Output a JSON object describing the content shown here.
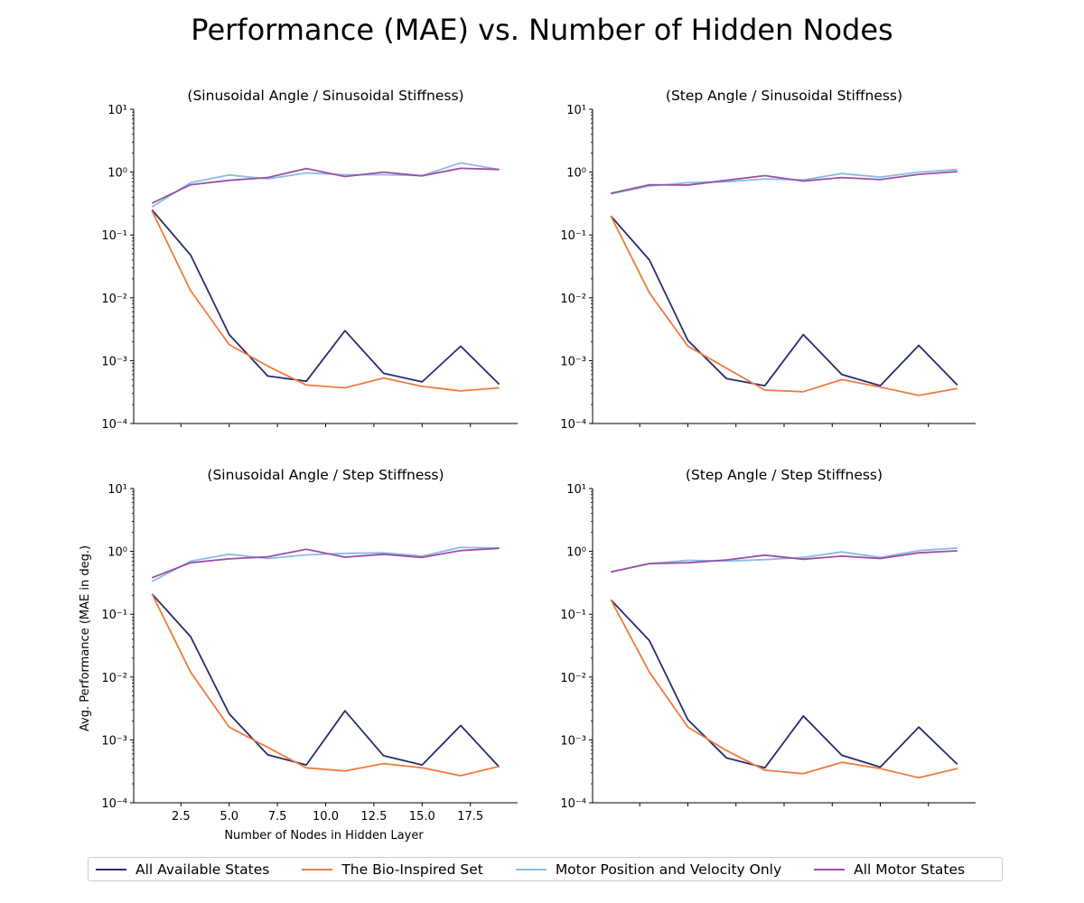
{
  "title": "Performance (MAE) vs. Number of Hidden Nodes",
  "legend": [
    {
      "name": "All Available States",
      "color": "#262e6a"
    },
    {
      "name": "The Bio-Inspired Set",
      "color": "#f07b3f"
    },
    {
      "name": "Motor Position and Velocity Only",
      "color": "#8bbce0"
    },
    {
      "name": "All Motor States",
      "color": "#9a4ea6"
    }
  ],
  "chart_data": [
    {
      "type": "line",
      "title": "(Sinusoidal Angle / Sinusoidal Stiffness)",
      "xlabel": "",
      "ylabel": "",
      "yscale": "log",
      "ylim": [
        0.0001,
        10
      ],
      "yticks": [
        "10⁻⁴",
        "10⁻³",
        "10⁻²",
        "10⁻¹",
        "10⁰",
        "10¹"
      ],
      "xticks": [],
      "x": [
        1,
        3,
        5,
        7,
        9,
        11,
        13,
        15,
        17,
        19
      ],
      "series": [
        {
          "name": "All Available States",
          "values": [
            0.25,
            0.048,
            0.0026,
            0.00057,
            0.00047,
            0.003,
            0.00063,
            0.00046,
            0.0017,
            0.00042
          ]
        },
        {
          "name": "The Bio-Inspired Set",
          "values": [
            0.24,
            0.013,
            0.0018,
            0.00082,
            0.00041,
            0.00037,
            0.00053,
            0.00039,
            0.00033,
            0.00037
          ]
        },
        {
          "name": "Motor Position and Velocity Only",
          "values": [
            0.28,
            0.68,
            0.9,
            0.78,
            0.97,
            0.91,
            0.91,
            0.88,
            1.4,
            1.1
          ]
        },
        {
          "name": "All Motor States",
          "values": [
            0.32,
            0.63,
            0.74,
            0.82,
            1.14,
            0.85,
            1.0,
            0.87,
            1.15,
            1.1
          ]
        }
      ]
    },
    {
      "type": "line",
      "title": "(Step Angle / Sinusoidal Stiffness)",
      "xlabel": "",
      "ylabel": "",
      "yscale": "log",
      "ylim": [
        0.0001,
        10
      ],
      "yticks": [
        "10⁻⁴",
        "10⁻³",
        "10⁻²",
        "10⁻¹",
        "10⁰",
        "10¹"
      ],
      "xticks": [],
      "x": [
        1,
        3,
        5,
        7,
        9,
        11,
        13,
        15,
        17,
        19
      ],
      "series": [
        {
          "name": "All Available States",
          "values": [
            0.2,
            0.04,
            0.0021,
            0.00052,
            0.0004,
            0.0026,
            0.0006,
            0.0004,
            0.00175,
            0.00041
          ]
        },
        {
          "name": "The Bio-Inspired Set",
          "values": [
            0.2,
            0.012,
            0.0017,
            0.00076,
            0.00034,
            0.00032,
            0.0005,
            0.00038,
            0.00028,
            0.00036
          ]
        },
        {
          "name": "Motor Position and Velocity Only",
          "values": [
            0.45,
            0.6,
            0.68,
            0.7,
            0.78,
            0.75,
            0.95,
            0.83,
            1.0,
            1.1
          ]
        },
        {
          "name": "All Motor States",
          "values": [
            0.46,
            0.63,
            0.62,
            0.74,
            0.88,
            0.72,
            0.82,
            0.76,
            0.92,
            1.02
          ]
        }
      ]
    },
    {
      "type": "line",
      "title": "(Sinusoidal Angle / Step Stiffness)",
      "xlabel": "Number of Nodes in Hidden Layer",
      "ylabel": "Avg. Performance (MAE in deg.)",
      "yscale": "log",
      "ylim": [
        0.0001,
        10
      ],
      "yticks": [
        "10⁻⁴",
        "10⁻³",
        "10⁻²",
        "10⁻¹",
        "10⁰",
        "10¹"
      ],
      "xticks": [
        "2.5",
        "5.0",
        "7.5",
        "10.0",
        "12.5",
        "15.0",
        "17.5"
      ],
      "x": [
        1,
        3,
        5,
        7,
        9,
        11,
        13,
        15,
        17,
        19
      ],
      "series": [
        {
          "name": "All Available States",
          "values": [
            0.21,
            0.044,
            0.0026,
            0.00058,
            0.0004,
            0.0029,
            0.00056,
            0.0004,
            0.0017,
            0.00037
          ]
        },
        {
          "name": "The Bio-Inspired Set",
          "values": [
            0.21,
            0.012,
            0.0016,
            0.00076,
            0.00036,
            0.00032,
            0.00042,
            0.00036,
            0.00027,
            0.00038
          ]
        },
        {
          "name": "Motor Position and Velocity Only",
          "values": [
            0.33,
            0.7,
            0.9,
            0.77,
            0.88,
            0.93,
            0.95,
            0.84,
            1.16,
            1.13
          ]
        },
        {
          "name": "All Motor States",
          "values": [
            0.38,
            0.66,
            0.76,
            0.82,
            1.08,
            0.81,
            0.9,
            0.8,
            1.03,
            1.12
          ]
        }
      ]
    },
    {
      "type": "line",
      "title": "(Step Angle / Step Stiffness)",
      "xlabel": "",
      "ylabel": "",
      "yscale": "log",
      "ylim": [
        0.0001,
        10
      ],
      "yticks": [
        "10⁻⁴",
        "10⁻³",
        "10⁻²",
        "10⁻¹",
        "10⁰",
        "10¹"
      ],
      "xticks": [],
      "x": [
        1,
        3,
        5,
        7,
        9,
        11,
        13,
        15,
        17,
        19
      ],
      "series": [
        {
          "name": "All Available States",
          "values": [
            0.17,
            0.038,
            0.0021,
            0.00052,
            0.00036,
            0.0024,
            0.00057,
            0.00037,
            0.0016,
            0.00041
          ]
        },
        {
          "name": "The Bio-Inspired Set",
          "values": [
            0.17,
            0.012,
            0.0016,
            0.00068,
            0.00033,
            0.00029,
            0.00044,
            0.00035,
            0.00025,
            0.00035
          ]
        },
        {
          "name": "Motor Position and Velocity Only",
          "values": [
            0.47,
            0.64,
            0.72,
            0.7,
            0.74,
            0.8,
            0.98,
            0.8,
            1.03,
            1.13
          ]
        },
        {
          "name": "All Motor States",
          "values": [
            0.47,
            0.64,
            0.66,
            0.73,
            0.87,
            0.75,
            0.84,
            0.77,
            0.95,
            1.02
          ]
        }
      ]
    }
  ]
}
